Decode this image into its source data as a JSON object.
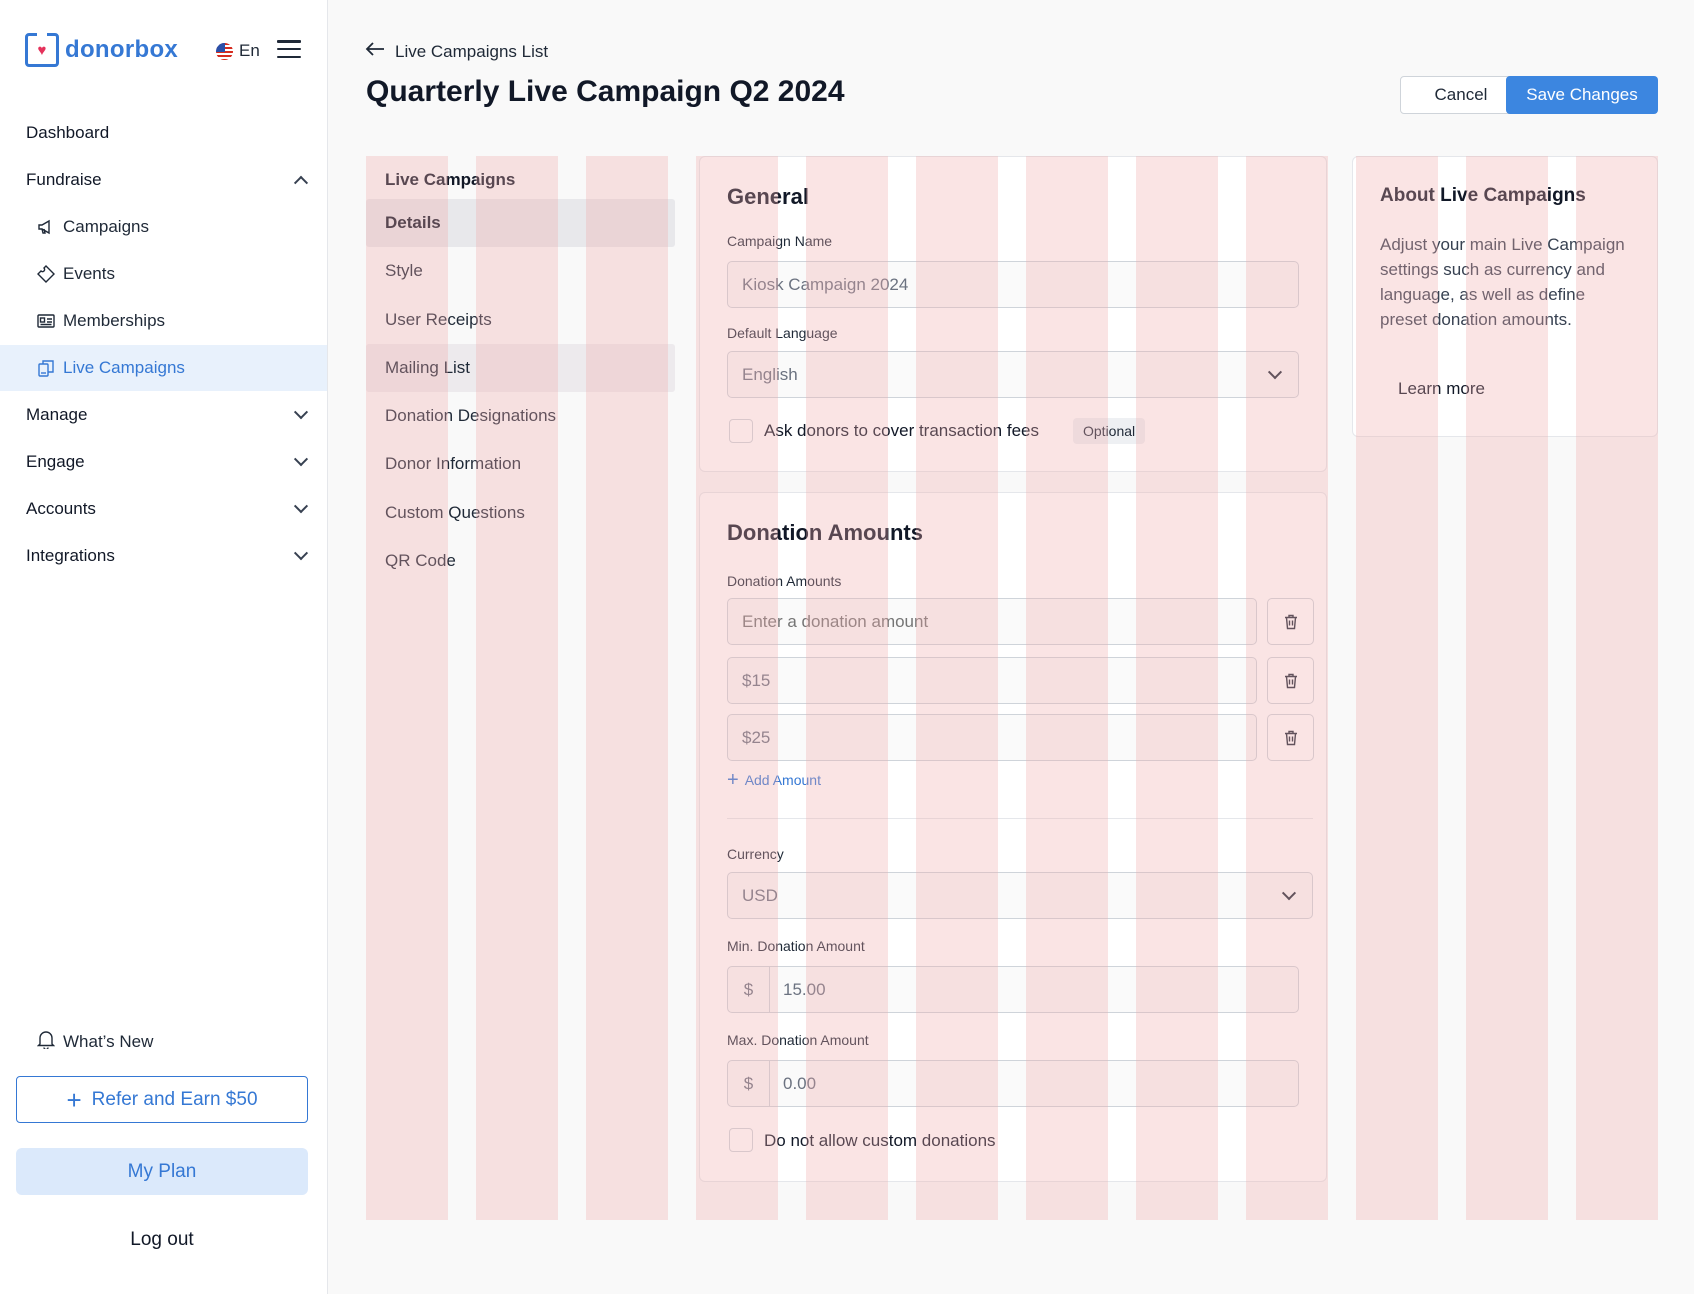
{
  "brand": {
    "name": "donorbox",
    "accent": "#3578d4"
  },
  "language": {
    "code": "En"
  },
  "sidebar": {
    "dashboard": "Dashboard",
    "fundraise": "Fundraise",
    "sub_items": [
      {
        "label": "Campaigns",
        "icon": "megaphone-icon"
      },
      {
        "label": "Events",
        "icon": "ticket-icon"
      },
      {
        "label": "Memberships",
        "icon": "id-card-icon"
      },
      {
        "label": "Live Campaigns",
        "icon": "kiosk-icon",
        "active": true
      }
    ],
    "sections": [
      "Manage",
      "Engage",
      "Accounts",
      "Integrations"
    ],
    "whats_new": "What’s New",
    "refer": "Refer and Earn $50",
    "my_plan": "My Plan",
    "logout": "Log out"
  },
  "header": {
    "back_label": "Live Campaigns List",
    "title": "Quarterly Live Campaign Q2 2024",
    "cancel": "Cancel",
    "save": "Save Changes"
  },
  "subnav": {
    "title": "Live Campaigns",
    "items": [
      "Details",
      "Style",
      "User Receipts",
      "Mailing List",
      "Donation Designations",
      "Donor Information",
      "Custom Questions",
      "QR Code"
    ]
  },
  "general": {
    "title": "General",
    "campaign_name_label": "Campaign Name",
    "campaign_name_value": "Kiosk Campaign 2024",
    "default_language_label": "Default Language",
    "default_language_value": "English",
    "cover_fees_label": "Ask donors to cover transaction fees",
    "optional_badge": "Optional"
  },
  "donation_amounts": {
    "title": "Donation Amounts",
    "amounts_label": "Donation Amounts",
    "amount_placeholder": "Enter a donation amount",
    "amounts": [
      "$15",
      "$25"
    ],
    "add_amount": "Add Amount",
    "currency_label": "Currency",
    "currency_value": "USD",
    "min_label": "Min. Donation Amount",
    "min_prefix": "$",
    "min_value": "15.00",
    "max_label": "Max. Donation Amount",
    "max_prefix": "$",
    "max_value": "0.00",
    "no_custom_label": "Do not allow custom donations"
  },
  "about": {
    "title": "About Live Campaigns",
    "text": "Adjust your main Live Campaign settings such as currency and language, as well as define preset donation amounts.",
    "learn_more": "Learn more"
  }
}
